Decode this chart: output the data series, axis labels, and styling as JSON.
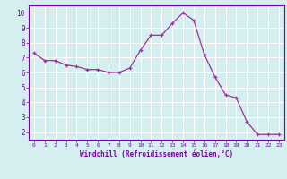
{
  "x": [
    0,
    1,
    2,
    3,
    4,
    5,
    6,
    7,
    8,
    9,
    10,
    11,
    12,
    13,
    14,
    15,
    16,
    17,
    18,
    19,
    20,
    21,
    22,
    23
  ],
  "y": [
    7.3,
    6.8,
    6.8,
    6.5,
    6.4,
    6.2,
    6.2,
    6.0,
    6.0,
    6.3,
    7.5,
    8.5,
    8.5,
    9.3,
    10.0,
    9.5,
    7.2,
    5.7,
    4.5,
    4.3,
    2.7,
    1.85,
    1.85,
    1.85
  ],
  "line_color": "#993399",
  "marker": "+",
  "bg_color": "#d5eef0",
  "grid_color": "#ffffff",
  "xlabel": "Windchill (Refroidissement éolien,°C)",
  "xlabel_color": "#7700aa",
  "tick_color": "#7700aa",
  "ylim": [
    1.5,
    10.5
  ],
  "xlim": [
    -0.5,
    23.5
  ],
  "yticks": [
    2,
    3,
    4,
    5,
    6,
    7,
    8,
    9,
    10
  ],
  "xticks": [
    0,
    1,
    2,
    3,
    4,
    5,
    6,
    7,
    8,
    9,
    10,
    11,
    12,
    13,
    14,
    15,
    16,
    17,
    18,
    19,
    20,
    21,
    22,
    23
  ]
}
